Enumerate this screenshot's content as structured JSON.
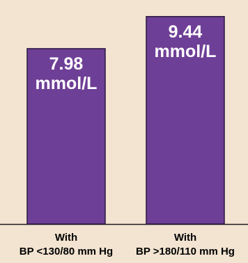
{
  "chart_data": {
    "type": "bar",
    "categories": [
      [
        "With",
        "BP <130/80 mm Hg"
      ],
      [
        "With",
        "BP >180/110 mm Hg"
      ]
    ],
    "values": [
      7.98,
      9.44
    ],
    "data_labels": [
      [
        "7.98",
        "mmol/L"
      ],
      [
        "9.44",
        "mmol/L"
      ]
    ],
    "title": "",
    "xlabel": "",
    "ylabel": "",
    "ylim": [
      0,
      9.75
    ],
    "grid": false,
    "legend": "none",
    "colors": {
      "bar": "#6e3f96",
      "bar_outline": "#2a1840",
      "background": "#f2e4d1",
      "label_text": "#ffffff",
      "axis_text": "#000000"
    }
  }
}
